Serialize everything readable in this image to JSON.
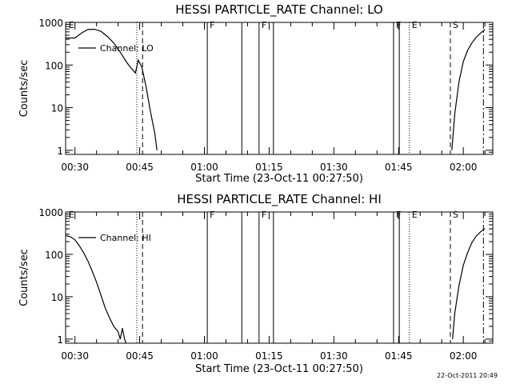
{
  "chart_data": [
    {
      "type": "line",
      "title": "HESSI PARTICLE_RATE Channel: LO",
      "xlabel": "Start Time (23-Oct-11 00:27:50)",
      "ylabel": "Counts/sec",
      "yscale": "log",
      "xlim": [
        "00:27:50",
        "02:06:50"
      ],
      "ylim": [
        0.8,
        1000
      ],
      "x_ticks": [
        "00:30",
        "00:45",
        "01:00",
        "01:15",
        "01:30",
        "01:45",
        "02:00"
      ],
      "y_ticks": [
        "1",
        "10",
        "100",
        "1000"
      ],
      "grid": false,
      "legend_position": "top-left",
      "series": [
        {
          "name": "Channel: LO",
          "segments": [
            {
              "x": [
                "00:27:50",
                "00:30:00",
                "00:31:30",
                "00:33:00",
                "00:34:30",
                "00:36:00",
                "00:37:30",
                "00:39:00",
                "00:40:30",
                "00:42:00",
                "00:43:00",
                "00:44:00",
                "00:44:40",
                "00:45:30",
                "00:46:30",
                "00:47:30",
                "00:48:30",
                "00:49:00"
              ],
              "y": [
                430,
                430,
                560,
                680,
                690,
                620,
                470,
                330,
                200,
                115,
                85,
                65,
                130,
                90,
                30,
                8,
                2.5,
                1.0
              ]
            },
            {
              "x": [
                "01:57:20",
                "01:58:00",
                "01:59:00",
                "02:00:00",
                "02:01:00",
                "02:02:00",
                "02:03:00",
                "02:04:00",
                "02:05:00"
              ],
              "y": [
                1.0,
                7,
                40,
                120,
                220,
                330,
                450,
                560,
                680
              ]
            }
          ]
        }
      ],
      "markers": [
        {
          "label": "E",
          "x": "00:28:00",
          "style": "none"
        },
        {
          "label": "",
          "x": "00:44:20",
          "style": "dotted"
        },
        {
          "label": "",
          "x": "00:45:40",
          "style": "dashed"
        },
        {
          "label": "F",
          "x": "01:00:40",
          "style": "solid"
        },
        {
          "label": "",
          "x": "01:08:40",
          "style": "solid"
        },
        {
          "label": "F",
          "x": "01:12:40",
          "style": "solid"
        },
        {
          "label": "",
          "x": "01:16:00",
          "style": "solid"
        },
        {
          "label": "F",
          "x": "01:43:50",
          "style": "solid"
        },
        {
          "label": "",
          "x": "01:45:10",
          "style": "solid"
        },
        {
          "label": "E",
          "x": "01:47:30",
          "style": "dotted"
        },
        {
          "label": "S",
          "x": "01:57:00",
          "style": "dashed"
        },
        {
          "label": "",
          "x": "02:04:40",
          "style": "dashdot"
        }
      ]
    },
    {
      "type": "line",
      "title": "HESSI PARTICLE_RATE Channel: HI",
      "xlabel": "Start Time (23-Oct-11 00:27:50)",
      "ylabel": "Counts/sec",
      "yscale": "log",
      "xlim": [
        "00:27:50",
        "02:06:50"
      ],
      "ylim": [
        0.8,
        1000
      ],
      "x_ticks": [
        "00:30",
        "00:45",
        "01:00",
        "01:15",
        "01:30",
        "01:45",
        "02:00"
      ],
      "y_ticks": [
        "1",
        "10",
        "100",
        "1000"
      ],
      "grid": false,
      "legend_position": "top-left",
      "series": [
        {
          "name": "Channel: HI",
          "segments": [
            {
              "x": [
                "00:27:50",
                "00:29:00",
                "00:30:00",
                "00:31:00",
                "00:32:00",
                "00:33:00",
                "00:34:00",
                "00:35:00",
                "00:36:00",
                "00:37:00",
                "00:38:00",
                "00:39:00",
                "00:40:00",
                "00:40:30",
                "00:41:00",
                "00:41:30",
                "00:41:50"
              ],
              "y": [
                280,
                260,
                220,
                160,
                110,
                70,
                40,
                22,
                11,
                5.5,
                3.2,
                2.0,
                1.5,
                1.0,
                1.8,
                1.0,
                0.8
              ]
            },
            {
              "x": [
                "01:57:30",
                "01:58:00",
                "01:59:00",
                "02:00:00",
                "02:01:00",
                "02:02:00",
                "02:03:00",
                "02:04:00",
                "02:05:00"
              ],
              "y": [
                1.0,
                4,
                18,
                55,
                110,
                190,
                270,
                340,
                410
              ]
            }
          ]
        }
      ],
      "markers": [
        {
          "label": "E",
          "x": "00:28:00",
          "style": "none"
        },
        {
          "label": "",
          "x": "00:44:20",
          "style": "dotted"
        },
        {
          "label": "",
          "x": "00:45:40",
          "style": "dashed"
        },
        {
          "label": "F",
          "x": "01:00:40",
          "style": "solid"
        },
        {
          "label": "",
          "x": "01:08:40",
          "style": "solid"
        },
        {
          "label": "F",
          "x": "01:12:40",
          "style": "solid"
        },
        {
          "label": "",
          "x": "01:16:00",
          "style": "solid"
        },
        {
          "label": "F",
          "x": "01:43:50",
          "style": "solid"
        },
        {
          "label": "",
          "x": "01:45:10",
          "style": "solid"
        },
        {
          "label": "E",
          "x": "01:47:30",
          "style": "dotted"
        },
        {
          "label": "S",
          "x": "01:57:00",
          "style": "dashed"
        },
        {
          "label": "",
          "x": "02:04:40",
          "style": "dashdot"
        }
      ]
    }
  ],
  "footer": {
    "timestamp": "22-Oct-2011 20:49"
  },
  "colors": {
    "background": "#ffffff",
    "foreground": "#000000"
  }
}
